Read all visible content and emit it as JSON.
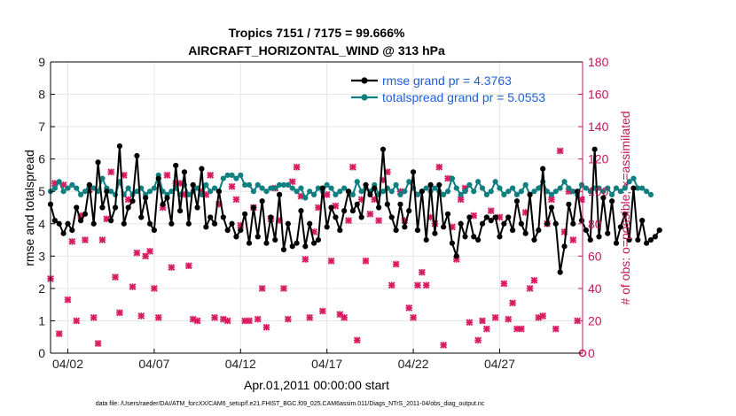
{
  "colors": {
    "rmse": "#000000",
    "spread": "#0f7f7f",
    "obs": "#d81b60",
    "grid": "#e6e6e6",
    "right_axis": "#c2185b",
    "legend_text": "#1f5fd6"
  },
  "chart_data": {
    "type": "line",
    "title": "Tropics 7151 / 7175 = 99.666%",
    "subtitle": "AIRCRAFT_HORIZONTAL_WIND @ 313 hPa",
    "xlabel": "Apr.01,2011 00:00:00 start",
    "ylabel": "rmse and totalspread",
    "ylabel_right": "# of obs: o=possible; ×=assimilated",
    "xlim": [
      0,
      30.8
    ],
    "ylim": [
      0,
      9
    ],
    "ylim_right": [
      0,
      180
    ],
    "xticks": [
      {
        "value": 1,
        "label": "04/02"
      },
      {
        "value": 6,
        "label": "04/07"
      },
      {
        "value": 11,
        "label": "04/12"
      },
      {
        "value": 16,
        "label": "04/17"
      },
      {
        "value": 21,
        "label": "04/22"
      },
      {
        "value": 26,
        "label": "04/27"
      }
    ],
    "yticks": [
      0,
      1,
      2,
      3,
      4,
      5,
      6,
      7,
      8,
      9
    ],
    "yticks_right": [
      0,
      20,
      40,
      60,
      80,
      100,
      120,
      140,
      160,
      180
    ],
    "x_step_days": 0.25,
    "legend_position": "top-right",
    "series": [
      {
        "name": "rmse grand pr = 4.3763",
        "axis": "left",
        "values": [
          4.6,
          4.1,
          4.0,
          3.7,
          4.0,
          3.8,
          4.5,
          4.1,
          4.3,
          5.2,
          4.0,
          5.9,
          4.5,
          5.0,
          4.1,
          4.5,
          6.4,
          4.0,
          4.5,
          4.7,
          6.1,
          4.2,
          4.8,
          4.0,
          3.8,
          5.4,
          4.6,
          4.8,
          4.0,
          5.8,
          4.4,
          5.6,
          4.0,
          5.2,
          4.5,
          5.7,
          3.9,
          4.2,
          4.0,
          5.0,
          4.2,
          3.8,
          4.0,
          3.6,
          3.8,
          4.3,
          3.4,
          4.5,
          3.6,
          4.7,
          3.4,
          4.2,
          3.5,
          4.9,
          3.2,
          4.0,
          3.3,
          3.4,
          4.4,
          3.3,
          4.0,
          3.4,
          3.5,
          5.1,
          3.9,
          4.5,
          4.2,
          3.8,
          4.4,
          5.0,
          4.4,
          4.6,
          4.2,
          5.2,
          4.9,
          5.1,
          4.5,
          6.3,
          4.6,
          4.2,
          3.8,
          4.6,
          3.9,
          4.4,
          5.6,
          3.8,
          5.0,
          3.5,
          5.2,
          3.7,
          5.2,
          3.9,
          4.3,
          3.4,
          3.0,
          4.0,
          3.6,
          4.2,
          3.6,
          3.5,
          4.0,
          4.2,
          4.1,
          4.2,
          3.6,
          4.0,
          4.2,
          3.8,
          4.7,
          4.0,
          3.7,
          4.9,
          3.5,
          3.8,
          5.7,
          4.0,
          4.5,
          4.0,
          2.5,
          3.3,
          4.6,
          4.0,
          5.0,
          4.1,
          3.8,
          3.5,
          6.3,
          3.6,
          4.8,
          3.7,
          4.7,
          3.4,
          3.9,
          4.3,
          3.5,
          5.1,
          3.5,
          4.1,
          3.4,
          3.5,
          3.6,
          3.8
        ],
        "marker": "filled circle"
      },
      {
        "name": "totalspread grand pr = 5.0553",
        "axis": "left",
        "values": [
          5.0,
          5.1,
          5.3,
          5.0,
          5.1,
          5.2,
          5.1,
          4.9,
          5.0,
          5.2,
          5.1,
          5.0,
          5.4,
          5.1,
          5.0,
          4.9,
          5.3,
          4.9,
          5.1,
          4.9,
          5.0,
          5.1,
          4.9,
          5.0,
          5.1,
          5.5,
          5.0,
          4.9,
          5.0,
          5.1,
          4.9,
          5.2,
          4.9,
          5.0,
          5.1,
          4.9,
          5.2,
          5.0,
          5.1,
          5.0,
          5.4,
          5.5,
          5.5,
          5.4,
          5.5,
          5.2,
          5.2,
          5.0,
          5.2,
          5.1,
          5.0,
          5.1,
          5.1,
          5.2,
          5.2,
          5.2,
          5.1,
          5.0,
          5.1,
          4.8,
          5.0,
          4.9,
          5.1,
          5.0,
          5.2,
          5.1,
          4.9,
          5.0,
          5.1,
          5.0,
          4.9,
          5.3,
          5.0,
          5.1,
          5.0,
          5.2,
          4.9,
          5.0,
          5.1,
          5.0,
          5.2,
          4.9,
          5.0,
          5.3,
          5.1,
          4.9,
          5.0,
          5.1,
          5.0,
          5.1,
          5.0,
          4.9,
          5.0,
          5.4,
          5.1,
          4.9,
          5.0,
          5.2,
          5.0,
          5.3,
          5.1,
          4.9,
          5.0,
          5.3,
          5.1,
          4.9,
          5.0,
          5.1,
          4.9,
          5.0,
          5.2,
          4.9,
          5.0,
          5.1,
          5.3,
          5.0,
          4.9,
          5.0,
          5.1,
          5.3,
          5.1,
          5.0,
          4.9,
          5.2,
          5.1,
          5.0,
          5.1,
          5.1,
          5.0,
          5.1,
          4.9,
          5.1,
          5.0,
          5.1,
          5.3,
          5.4,
          5.1,
          5.1,
          5.0,
          4.9
        ],
        "marker": "filled circle"
      },
      {
        "name": "# obs assimilated",
        "axis": "right",
        "points": [
          [
            0.0,
            46
          ],
          [
            0.25,
            105
          ],
          [
            0.5,
            12
          ],
          [
            0.75,
            104
          ],
          [
            1.0,
            33
          ],
          [
            1.25,
            69
          ],
          [
            1.5,
            20
          ],
          [
            1.75,
            85
          ],
          [
            2.0,
            70
          ],
          [
            2.25,
            101
          ],
          [
            2.5,
            22
          ],
          [
            2.75,
            6
          ],
          [
            3.0,
            70
          ],
          [
            3.25,
            83
          ],
          [
            3.5,
            112
          ],
          [
            3.75,
            47
          ],
          [
            4.0,
            25
          ],
          [
            4.25,
            110
          ],
          [
            4.5,
            95
          ],
          [
            4.75,
            41
          ],
          [
            5.0,
            62
          ],
          [
            5.25,
            23
          ],
          [
            5.5,
            60
          ],
          [
            5.75,
            63
          ],
          [
            6.0,
            40
          ],
          [
            6.25,
            22
          ],
          [
            6.5,
            90
          ],
          [
            6.75,
            110
          ],
          [
            7.0,
            53
          ],
          [
            7.25,
            105
          ],
          [
            7.5,
            105
          ],
          [
            7.75,
            98
          ],
          [
            8.0,
            54
          ],
          [
            8.25,
            21
          ],
          [
            8.5,
            20
          ],
          [
            8.75,
            100
          ],
          [
            9.0,
            98
          ],
          [
            9.25,
            110
          ],
          [
            9.5,
            22
          ],
          [
            9.75,
            92
          ],
          [
            10.0,
            21
          ],
          [
            10.25,
            20
          ],
          [
            10.5,
            103
          ],
          [
            10.75,
            95
          ],
          [
            11.0,
            79
          ],
          [
            11.25,
            20
          ],
          [
            11.5,
            20
          ],
          [
            11.75,
            90
          ],
          [
            12.0,
            21
          ],
          [
            12.25,
            40
          ],
          [
            12.5,
            16
          ],
          [
            12.75,
            83
          ],
          [
            13.0,
            102
          ],
          [
            13.25,
            82
          ],
          [
            13.5,
            40
          ],
          [
            13.75,
            21
          ],
          [
            14.0,
            106
          ],
          [
            14.25,
            115
          ],
          [
            14.5,
            97
          ],
          [
            14.75,
            58
          ],
          [
            15.0,
            22
          ],
          [
            15.25,
            75
          ],
          [
            15.5,
            90
          ],
          [
            15.75,
            26
          ],
          [
            16.0,
            98
          ],
          [
            16.25,
            57
          ],
          [
            16.5,
            91
          ],
          [
            16.75,
            24
          ],
          [
            17.0,
            22
          ],
          [
            17.25,
            82
          ],
          [
            17.5,
            115
          ],
          [
            17.75,
            8
          ],
          [
            18.0,
            95
          ],
          [
            18.25,
            57
          ],
          [
            18.5,
            86
          ],
          [
            18.75,
            95
          ],
          [
            19.0,
            82
          ],
          [
            19.25,
            107
          ],
          [
            19.5,
            112
          ],
          [
            19.75,
            42
          ],
          [
            20.0,
            55
          ],
          [
            20.25,
            100
          ],
          [
            20.5,
            82
          ],
          [
            20.75,
            28
          ],
          [
            21.0,
            22
          ],
          [
            21.25,
            42
          ],
          [
            21.5,
            50
          ],
          [
            21.75,
            42
          ],
          [
            22.0,
            84
          ],
          [
            22.25,
            80
          ],
          [
            22.5,
            115
          ],
          [
            22.75,
            5
          ],
          [
            23.0,
            108
          ],
          [
            23.25,
            78
          ],
          [
            23.5,
            58
          ],
          [
            23.75,
            95
          ],
          [
            24.0,
            102
          ],
          [
            24.25,
            19
          ],
          [
            24.5,
            85
          ],
          [
            24.75,
            8
          ],
          [
            25.0,
            20
          ],
          [
            25.25,
            15
          ],
          [
            25.5,
            88
          ],
          [
            25.75,
            22
          ],
          [
            26.0,
            84
          ],
          [
            26.25,
            43
          ],
          [
            26.5,
            21
          ],
          [
            26.75,
            31
          ],
          [
            27.0,
            15
          ],
          [
            27.25,
            15
          ],
          [
            27.5,
            87
          ],
          [
            27.75,
            40
          ],
          [
            28.0,
            45
          ],
          [
            28.25,
            22
          ],
          [
            28.5,
            23
          ],
          [
            28.75,
            80
          ],
          [
            29.0,
            95
          ],
          [
            29.25,
            15
          ],
          [
            29.5,
            125
          ],
          [
            29.75,
            75
          ],
          [
            30.0,
            100
          ],
          [
            30.25,
            70
          ],
          [
            30.5,
            20
          ],
          [
            30.75,
            95
          ]
        ],
        "marker": "cross"
      },
      {
        "name": "# obs possible",
        "axis": "right",
        "points": [
          [
            30.8,
            0
          ]
        ],
        "marker": "open circle"
      }
    ]
  },
  "footer": {
    "data_file": "data file: /Users/raeder/DAI/ATM_forcXX/CAM6_setup/f.e21.FHIST_BGC.f09_025.CAM6assim.011/Diags_NTrS_2011-04/obs_diag_output.nc"
  }
}
